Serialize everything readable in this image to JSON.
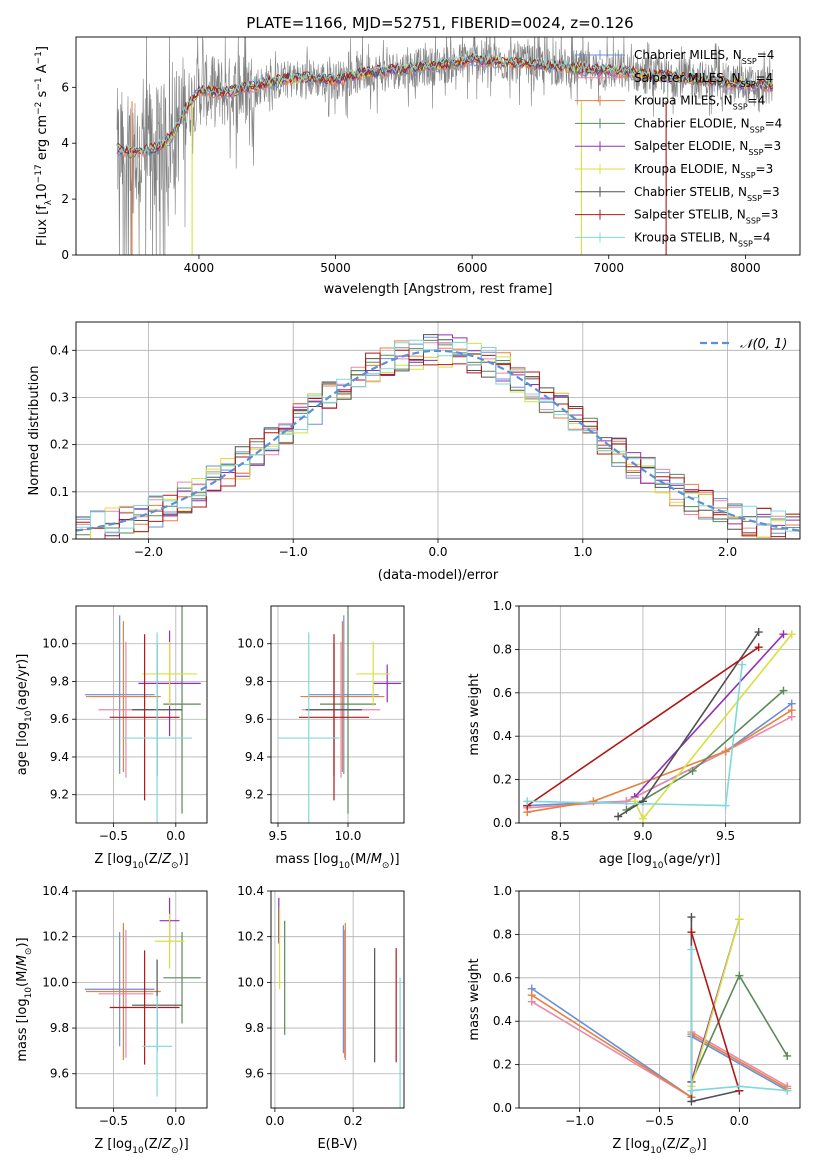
{
  "title": "PLATE=1166, MJD=52751, FIBERID=0024, z=0.126",
  "colors": {
    "Chabrier MILES": "#6a8fd8",
    "Salpeter MILES": "#e88aa8",
    "Kroupa MILES": "#e88040",
    "Chabrier ELODIE": "#5a8a5a",
    "Salpeter ELODIE": "#9030b8",
    "Kroupa ELODIE": "#d8e040",
    "Chabrier STELIB": "#505050",
    "Salpeter STELIB": "#b01818",
    "Kroupa STELIB": "#80d8dc",
    "data": "#808080"
  },
  "chart_data": [
    {
      "id": "spectrum",
      "type": "line",
      "xlabel": "wavelength [Angstrom, rest frame]",
      "ylabel": "Flux [f_λ10^-17 erg cm^-2 s^-1 A^-1]",
      "xlim": [
        3100,
        8400
      ],
      "ylim": [
        0,
        7.8
      ],
      "xticks": [
        4000,
        5000,
        6000,
        7000,
        8000
      ],
      "yticks": [
        0,
        2,
        4,
        6
      ],
      "legend_position": "top-right",
      "legend": [
        {
          "label": "Chabrier MILES, N_SSP=4",
          "color_key": "Chabrier MILES"
        },
        {
          "label": "Salpeter MILES, N_SSP=4",
          "color_key": "Salpeter MILES"
        },
        {
          "label": "Kroupa MILES, N_SSP=4",
          "color_key": "Kroupa MILES"
        },
        {
          "label": "Chabrier ELODIE, N_SSP=4",
          "color_key": "Chabrier ELODIE"
        },
        {
          "label": "Salpeter ELODIE, N_SSP=3",
          "color_key": "Salpeter ELODIE"
        },
        {
          "label": "Kroupa ELODIE, N_SSP=3",
          "color_key": "Kroupa ELODIE"
        },
        {
          "label": "Chabrier STELIB, N_SSP=3",
          "color_key": "Chabrier STELIB"
        },
        {
          "label": "Salpeter STELIB, N_SSP=3",
          "color_key": "Salpeter STELIB"
        },
        {
          "label": "Kroupa STELIB, N_SSP=4",
          "color_key": "Kroupa STELIB"
        }
      ],
      "continuum": {
        "x": [
          3400,
          3500,
          3600,
          3700,
          3800,
          3900,
          4000,
          4100,
          4200,
          4400,
          4600,
          4800,
          5000,
          5200,
          5400,
          5600,
          5800,
          6000,
          6200,
          6400,
          6600,
          6800,
          7000,
          7200,
          7400,
          7600,
          7800,
          8000,
          8200
        ],
        "y": [
          3.8,
          3.65,
          3.7,
          3.85,
          4.2,
          5.2,
          5.9,
          5.85,
          5.8,
          6.05,
          6.25,
          6.35,
          6.25,
          6.5,
          6.6,
          6.7,
          6.8,
          7.0,
          6.9,
          6.85,
          6.75,
          6.65,
          6.6,
          6.5,
          6.4,
          6.3,
          6.2,
          6.1,
          6.05
        ]
      }
    },
    {
      "id": "residuals",
      "type": "bar",
      "xlabel": "(data-model)/error",
      "ylabel": "Normed distribution",
      "xlim": [
        -2.5,
        2.5
      ],
      "ylim": [
        0,
        0.46
      ],
      "xticks": [
        -2,
        -1,
        0,
        1,
        2
      ],
      "yticks": [
        0.0,
        0.1,
        0.2,
        0.3,
        0.4
      ],
      "grid": true,
      "bin_width": 0.1,
      "bin_start": -2.5,
      "gaussian": {
        "label": "𝒩(0, 1)",
        "mean": 0,
        "sigma": 1,
        "color": "#5b8fd9"
      },
      "legend_position": "top-right"
    },
    {
      "id": "age_vs_Z",
      "type": "scatter",
      "xlabel": "Z [log10(Z/Z⊙)]",
      "ylabel": "age  [log10(age/yr)]",
      "xlim": [
        -0.8,
        0.25
      ],
      "ylim": [
        9.05,
        10.2
      ],
      "xticks": [
        -0.5,
        0.0
      ],
      "xtick_labels": [
        "−0.5",
        "0.0"
      ],
      "yticks": [
        9.2,
        9.4,
        9.6,
        9.8,
        10.0
      ],
      "grid": true,
      "points": [
        {
          "model": "Chabrier MILES",
          "x": -0.45,
          "xerr": 0.28,
          "y": 9.73,
          "yerr": 0.42
        },
        {
          "model": "Salpeter MILES",
          "x": -0.4,
          "xerr": 0.22,
          "y": 9.65,
          "yerr": 0.36
        },
        {
          "model": "Kroupa MILES",
          "x": -0.42,
          "xerr": 0.3,
          "y": 9.72,
          "yerr": 0.4
        },
        {
          "model": "Chabrier ELODIE",
          "x": 0.05,
          "xerr": 0.15,
          "y": 9.68,
          "yerr": 0.58
        },
        {
          "model": "Salpeter ELODIE",
          "x": -0.05,
          "xerr": 0.25,
          "y": 9.79,
          "yerr": 0.28
        },
        {
          "model": "Kroupa ELODIE",
          "x": -0.05,
          "xerr": 0.22,
          "y": 9.84,
          "yerr": 0.17
        },
        {
          "model": "Chabrier STELIB",
          "x": -0.15,
          "xerr": 0.2,
          "y": 9.65,
          "yerr": 0.35
        },
        {
          "model": "Salpeter STELIB",
          "x": -0.25,
          "xerr": 0.28,
          "y": 9.61,
          "yerr": 0.44
        },
        {
          "model": "Kroupa STELIB",
          "x": -0.15,
          "xerr": 0.28,
          "y": 9.5,
          "yerr": 0.56
        }
      ]
    },
    {
      "id": "age_vs_mass",
      "type": "scatter",
      "xlabel": "mass [log10(M/M⊙)]",
      "ylabel": "",
      "xlim": [
        9.45,
        10.4
      ],
      "ylim": [
        9.05,
        10.2
      ],
      "xticks": [
        9.5,
        10.0
      ],
      "yticks": [
        9.2,
        9.4,
        9.6,
        9.8,
        10.0
      ],
      "grid": true,
      "points": [
        {
          "model": "Chabrier MILES",
          "x": 9.97,
          "xerr": 0.25,
          "y": 9.73,
          "yerr": 0.42
        },
        {
          "model": "Salpeter MILES",
          "x": 9.95,
          "xerr": 0.28,
          "y": 9.65,
          "yerr": 0.36
        },
        {
          "model": "Kroupa MILES",
          "x": 9.96,
          "xerr": 0.3,
          "y": 9.72,
          "yerr": 0.4
        },
        {
          "model": "Chabrier ELODIE",
          "x": 10.0,
          "xerr": 0.2,
          "y": 9.68,
          "yerr": 0.58
        },
        {
          "model": "Salpeter ELODIE",
          "x": 10.28,
          "xerr": 0.1,
          "y": 9.79,
          "yerr": 0.1
        },
        {
          "model": "Kroupa ELODIE",
          "x": 10.18,
          "xerr": 0.12,
          "y": 9.84,
          "yerr": 0.17
        },
        {
          "model": "Chabrier STELIB",
          "x": 9.9,
          "xerr": 0.2,
          "y": 9.65,
          "yerr": 0.35
        },
        {
          "model": "Salpeter STELIB",
          "x": 9.9,
          "xerr": 0.25,
          "y": 9.61,
          "yerr": 0.44
        },
        {
          "model": "Kroupa STELIB",
          "x": 9.72,
          "xerr": 0.22,
          "y": 9.5,
          "yerr": 0.56
        }
      ]
    },
    {
      "id": "massweight_vs_age",
      "type": "line",
      "xlabel": "age  [log10(age/yr)]",
      "ylabel": "mass weight",
      "xlim": [
        8.25,
        9.95
      ],
      "ylim": [
        0,
        1.0
      ],
      "xticks": [
        8.5,
        9.0,
        9.5
      ],
      "yticks": [
        0.0,
        0.2,
        0.4,
        0.6,
        0.8,
        1.0
      ],
      "grid": true,
      "series": [
        {
          "model": "Chabrier MILES",
          "x": [
            8.3,
            8.9,
            9.5,
            9.9
          ],
          "y": [
            0.08,
            0.1,
            0.33,
            0.55
          ]
        },
        {
          "model": "Salpeter MILES",
          "x": [
            8.3,
            8.9,
            9.5,
            9.9
          ],
          "y": [
            0.07,
            0.1,
            0.33,
            0.49
          ]
        },
        {
          "model": "Kroupa MILES",
          "x": [
            8.3,
            8.7,
            9.5,
            9.9
          ],
          "y": [
            0.05,
            0.1,
            0.33,
            0.52
          ]
        },
        {
          "model": "Chabrier ELODIE",
          "x": [
            8.9,
            9.3,
            9.85
          ],
          "y": [
            0.06,
            0.24,
            0.61
          ]
        },
        {
          "model": "Salpeter ELODIE",
          "x": [
            8.95,
            9.85
          ],
          "y": [
            0.12,
            0.87
          ]
        },
        {
          "model": "Kroupa ELODIE",
          "x": [
            8.95,
            9.0,
            9.9
          ],
          "y": [
            0.1,
            0.02,
            0.87
          ]
        },
        {
          "model": "Chabrier STELIB",
          "x": [
            8.85,
            9.0,
            9.7
          ],
          "y": [
            0.03,
            0.1,
            0.88
          ]
        },
        {
          "model": "Salpeter STELIB",
          "x": [
            8.3,
            9.7
          ],
          "y": [
            0.08,
            0.81
          ]
        },
        {
          "model": "Kroupa STELIB",
          "x": [
            8.3,
            9.5,
            9.6
          ],
          "y": [
            0.1,
            0.08,
            0.73
          ]
        }
      ]
    },
    {
      "id": "mass_vs_Z",
      "type": "scatter",
      "xlabel": "Z [log10(Z/Z⊙)]",
      "ylabel": "mass [log10(M/M⊙)]",
      "xlim": [
        -0.8,
        0.25
      ],
      "ylim": [
        9.45,
        10.4
      ],
      "xticks": [
        -0.5,
        0.0
      ],
      "xtick_labels": [
        "−0.5",
        "0.0"
      ],
      "yticks": [
        9.6,
        9.8,
        10.0,
        10.2,
        10.4
      ],
      "grid": true,
      "points": [
        {
          "model": "Chabrier MILES",
          "x": -0.45,
          "xerr": 0.28,
          "y": 9.97,
          "yerr": 0.25
        },
        {
          "model": "Salpeter MILES",
          "x": -0.4,
          "xerr": 0.22,
          "y": 9.95,
          "yerr": 0.28
        },
        {
          "model": "Kroupa MILES",
          "x": -0.42,
          "xerr": 0.3,
          "y": 9.96,
          "yerr": 0.3
        },
        {
          "model": "Chabrier ELODIE",
          "x": 0.05,
          "xerr": 0.15,
          "y": 10.02,
          "yerr": 0.2
        },
        {
          "model": "Salpeter ELODIE",
          "x": -0.05,
          "xerr": 0.08,
          "y": 10.27,
          "yerr": 0.1
        },
        {
          "model": "Kroupa ELODIE",
          "x": -0.05,
          "xerr": 0.12,
          "y": 10.18,
          "yerr": 0.12
        },
        {
          "model": "Chabrier STELIB",
          "x": -0.15,
          "xerr": 0.2,
          "y": 9.9,
          "yerr": 0.2
        },
        {
          "model": "Salpeter STELIB",
          "x": -0.25,
          "xerr": 0.28,
          "y": 9.89,
          "yerr": 0.25
        },
        {
          "model": "Kroupa STELIB",
          "x": -0.15,
          "xerr": 0.12,
          "y": 9.72,
          "yerr": 0.22
        }
      ]
    },
    {
      "id": "mass_vs_ebv",
      "type": "scatter",
      "xlabel": "E(B-V)",
      "ylabel": "",
      "xlim": [
        -0.01,
        0.33
      ],
      "ylim": [
        9.45,
        10.4
      ],
      "xticks": [
        0.0,
        0.2
      ],
      "yticks": [
        9.6,
        9.8,
        10.0,
        10.2,
        10.4
      ],
      "grid": true,
      "points": [
        {
          "model": "Chabrier MILES",
          "x": 0.175,
          "y": 9.97,
          "yerr": 0.28
        },
        {
          "model": "Salpeter MILES",
          "x": 0.178,
          "y": 9.95,
          "yerr": 0.28
        },
        {
          "model": "Kroupa MILES",
          "x": 0.18,
          "y": 9.96,
          "yerr": 0.3
        },
        {
          "model": "Chabrier ELODIE",
          "x": 0.025,
          "y": 10.02,
          "yerr": 0.25
        },
        {
          "model": "Salpeter ELODIE",
          "x": 0.01,
          "y": 10.27,
          "yerr": 0.1
        },
        {
          "model": "Kroupa ELODIE",
          "x": 0.012,
          "y": 10.15,
          "yerr": 0.18
        },
        {
          "model": "Chabrier STELIB",
          "x": 0.255,
          "y": 9.9,
          "yerr": 0.25
        },
        {
          "model": "Salpeter STELIB",
          "x": 0.31,
          "y": 9.9,
          "yerr": 0.25
        },
        {
          "model": "Kroupa STELIB",
          "x": 0.32,
          "y": 9.72,
          "yerr": 0.3
        }
      ]
    },
    {
      "id": "massweight_vs_Z",
      "type": "line",
      "xlabel": "Z [log10(Z/Z⊙)]",
      "ylabel": "mass weight",
      "xlim": [
        -1.38,
        0.38
      ],
      "ylim": [
        0,
        1.0
      ],
      "xticks": [
        -1.0,
        -0.5,
        0.0
      ],
      "xtick_labels": [
        "−1.0",
        "−0.5",
        "0.0"
      ],
      "yticks": [
        0.0,
        0.2,
        0.4,
        0.6,
        0.8,
        1.0
      ],
      "grid": true,
      "series": [
        {
          "model": "Chabrier MILES",
          "x": [
            -1.3,
            -0.3,
            -0.3,
            0.3
          ],
          "y": [
            0.55,
            0.05,
            0.33,
            0.08
          ]
        },
        {
          "model": "Salpeter MILES",
          "x": [
            -1.3,
            -0.3,
            -0.3,
            0.3
          ],
          "y": [
            0.49,
            0.05,
            0.35,
            0.1
          ]
        },
        {
          "model": "Kroupa MILES",
          "x": [
            -1.3,
            -0.3,
            -0.3,
            0.3
          ],
          "y": [
            0.52,
            0.05,
            0.34,
            0.09
          ]
        },
        {
          "model": "Chabrier ELODIE",
          "x": [
            -0.3,
            0.0,
            0.3
          ],
          "y": [
            0.12,
            0.61,
            0.24
          ]
        },
        {
          "model": "Salpeter ELODIE",
          "x": [
            -0.3,
            0.0
          ],
          "y": [
            0.12,
            0.87
          ]
        },
        {
          "model": "Kroupa ELODIE",
          "x": [
            -0.3,
            0.0
          ],
          "y": [
            0.1,
            0.87
          ]
        },
        {
          "model": "Chabrier STELIB",
          "x": [
            -0.3,
            -0.3,
            0.0
          ],
          "y": [
            0.88,
            0.03,
            0.08
          ]
        },
        {
          "model": "Salpeter STELIB",
          "x": [
            -0.3,
            0.0
          ],
          "y": [
            0.81,
            0.08
          ]
        },
        {
          "model": "Kroupa STELIB",
          "x": [
            -0.3,
            -0.3,
            0.0,
            0.3
          ],
          "y": [
            0.73,
            0.08,
            0.1,
            0.08
          ]
        }
      ]
    }
  ]
}
